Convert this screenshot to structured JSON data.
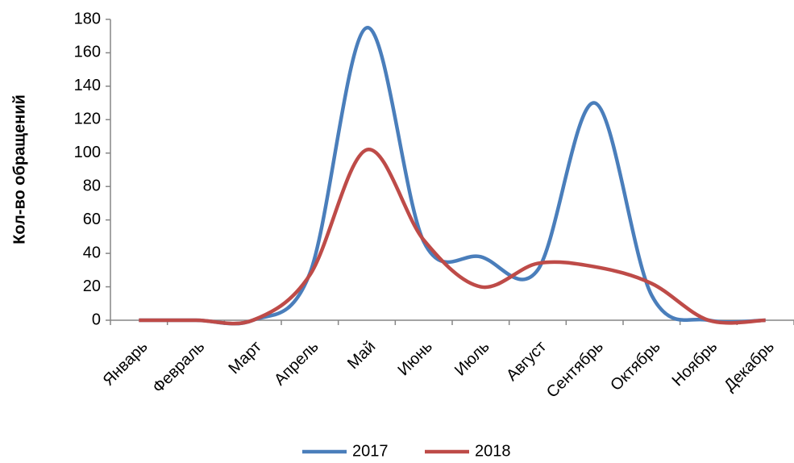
{
  "chart_data": {
    "type": "line",
    "y_label": "Кол-во обращений",
    "categories": [
      "Январь",
      "Февраль",
      "Март",
      "Апрель",
      "Май",
      "Июнь",
      "Июль",
      "Август",
      "Сентябрь",
      "Октябрь",
      "Ноябрь",
      "Декабрь"
    ],
    "series": [
      {
        "name": "2017",
        "color": "#4a7ebb",
        "values": [
          0,
          0,
          0,
          28,
          175,
          47,
          38,
          30,
          130,
          15,
          0,
          0
        ]
      },
      {
        "name": "2018",
        "color": "#be4b48",
        "values": [
          0,
          0,
          0,
          27,
          102,
          48,
          20,
          34,
          32,
          22,
          0,
          0
        ]
      }
    ],
    "ylim": [
      0,
      180
    ],
    "yticks": [
      0,
      20,
      40,
      60,
      80,
      100,
      120,
      140,
      160,
      180
    ],
    "smooth": true,
    "legend": "bottom"
  }
}
